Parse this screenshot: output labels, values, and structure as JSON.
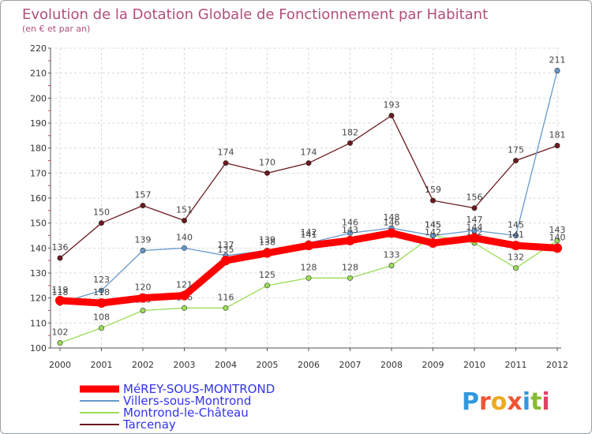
{
  "chart_data": {
    "type": "line",
    "title": "Evolution de la Dotation Globale de Fonctionnement par Habitant",
    "subtitle": "(en € et par an)",
    "xlabel": "",
    "ylabel": "",
    "x": [
      "2000",
      "2001",
      "2002",
      "2003",
      "2004",
      "2005",
      "2006",
      "2007",
      "2008",
      "2009",
      "2010",
      "2011",
      "2012"
    ],
    "ylim": [
      100,
      220
    ],
    "yticks": [
      100,
      110,
      120,
      130,
      140,
      150,
      160,
      170,
      180,
      190,
      200,
      210,
      220
    ],
    "grid": true,
    "legend_position": "bottom-left",
    "series": [
      {
        "name": "Tarcenay",
        "color": "#6b1a1f",
        "values": [
          136,
          150,
          157,
          151,
          174,
          170,
          174,
          182,
          193,
          159,
          156,
          175,
          181
        ]
      },
      {
        "name": "Montrond-le-Château",
        "color": "#99dd55",
        "values": [
          102,
          108,
          115,
          116,
          116,
          125,
          128,
          128,
          133,
          145,
          142,
          132,
          143
        ]
      },
      {
        "name": "Villers-sous-Montrond",
        "color": "#6699cc",
        "values": [
          118,
          123,
          139,
          140,
          137,
          139,
          142,
          146,
          148,
          145,
          147,
          145,
          211
        ]
      },
      {
        "name": "MéREY-SOUS-MONTROND",
        "color": "#ff0000",
        "values": [
          119,
          118,
          120,
          121,
          135,
          138,
          141,
          143,
          146,
          142,
          144,
          141,
          140
        ]
      }
    ]
  },
  "legend": {
    "label_color": "#3333ee"
  },
  "brand": {
    "text": "Proxiti",
    "letters": [
      "P",
      "r",
      "o",
      "x",
      "i",
      "t",
      "i"
    ],
    "colors": [
      "#3399dd",
      "#ee5533",
      "#eeaa22",
      "#ee5533",
      "#3399dd",
      "#88bb33",
      "#dd4466"
    ]
  }
}
